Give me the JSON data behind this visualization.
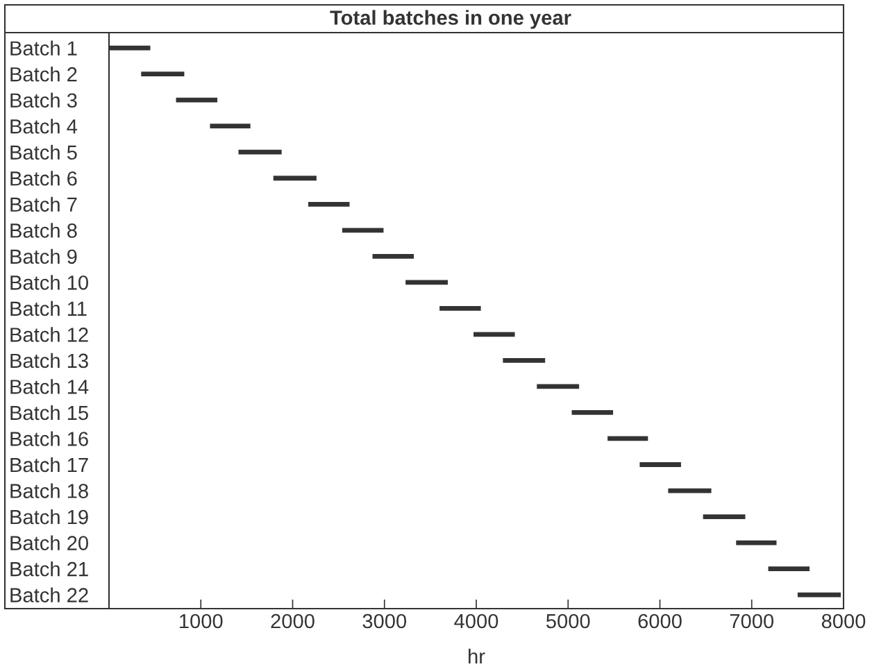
{
  "chart_data": {
    "type": "bar",
    "orientation": "horizontal",
    "title": "Total batches in one year",
    "xlabel": "hr",
    "categories": [
      "Batch 1",
      "Batch 2",
      "Batch 3",
      "Batch 4",
      "Batch 5",
      "Batch 6",
      "Batch 7",
      "Batch 8",
      "Batch 9",
      "Batch 10",
      "Batch 11",
      "Batch 12",
      "Batch 13",
      "Batch 14",
      "Batch 15",
      "Batch 16",
      "Batch 17",
      "Batch 18",
      "Batch 19",
      "Batch 20",
      "Batch 21",
      "Batch 22"
    ],
    "base": [
      0,
      350,
      730,
      1100,
      1410,
      1790,
      2170,
      2540,
      2870,
      3230,
      3600,
      3970,
      4290,
      4660,
      5040,
      5430,
      5780,
      6090,
      6470,
      6830,
      7180,
      7500
    ],
    "values": [
      450,
      470,
      450,
      440,
      470,
      470,
      450,
      450,
      450,
      460,
      450,
      450,
      460,
      460,
      450,
      440,
      450,
      470,
      460,
      440,
      450,
      470
    ],
    "color": "#333333",
    "xlim": [
      0,
      8000
    ],
    "xticks": [
      1000,
      2000,
      3000,
      4000,
      5000,
      6000,
      7000,
      8000
    ]
  }
}
